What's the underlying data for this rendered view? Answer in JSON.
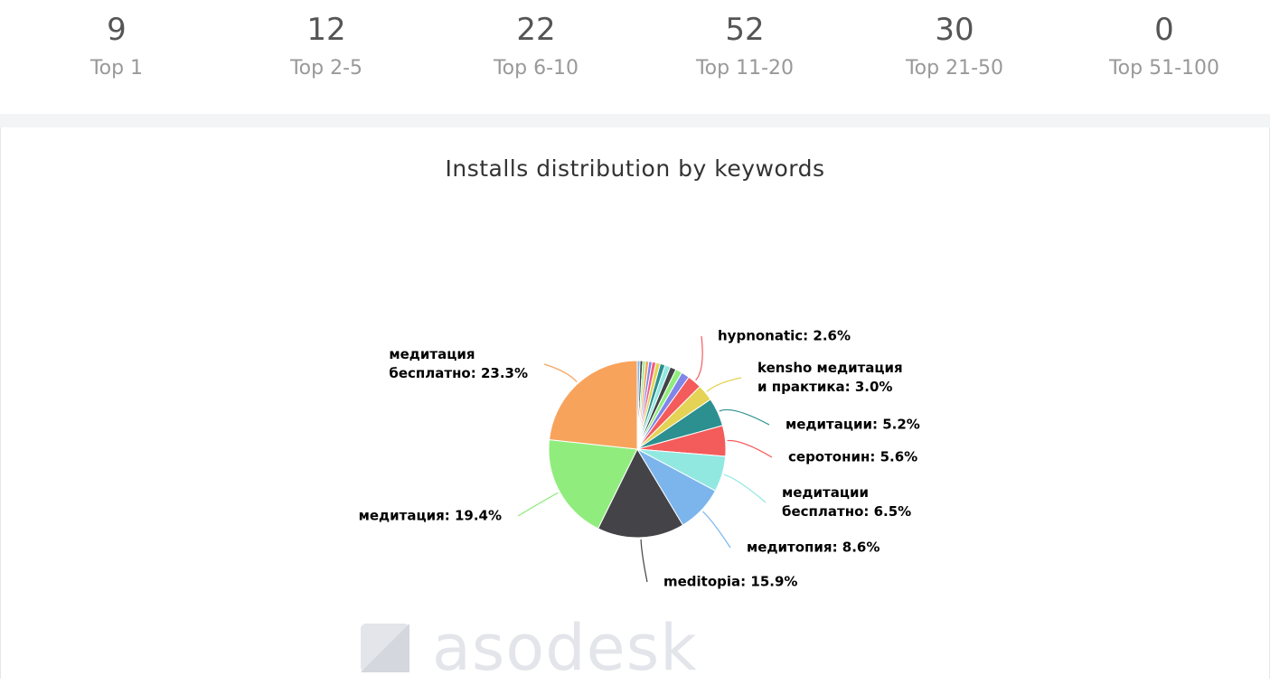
{
  "stats": [
    {
      "value": 9,
      "label": "Top 1"
    },
    {
      "value": 12,
      "label": "Top 2-5"
    },
    {
      "value": 22,
      "label": "Top 6-10"
    },
    {
      "value": 52,
      "label": "Top 11-20"
    },
    {
      "value": 30,
      "label": "Top 21-50"
    },
    {
      "value": 0,
      "label": "Top 51-100"
    }
  ],
  "chart_data": {
    "type": "pie",
    "title": "Installs distribution by keywords",
    "values": [
      0.5,
      0.5,
      0.5,
      0.6,
      0.6,
      0.7,
      0.8,
      0.9,
      1.0,
      1.1,
      1.2,
      1.5,
      2.6,
      3.0,
      5.2,
      5.6,
      6.5,
      8.6,
      15.9,
      19.4,
      23.3
    ],
    "value_labels": [
      null,
      null,
      null,
      null,
      null,
      null,
      null,
      null,
      null,
      null,
      null,
      null,
      "hypnonatic: 2.6%",
      "kensho медитация\nи практика: 3.0%",
      "медитации: 5.2%",
      "серотонин: 5.6%",
      "медитации\nбесплатно: 6.5%",
      "медитопия: 8.6%",
      "meditopia: 15.9%",
      "медитация: 19.4%",
      "медитация\nбесплатно: 23.3%"
    ],
    "colors": [
      "#7cb5ec",
      "#434348",
      "#90ed7d",
      "#f7a35c",
      "#8085e9",
      "#f15c80",
      "#e4d354",
      "#2b908f",
      "#91e8e1",
      "#434348",
      "#90ed7d",
      "#8085e9",
      "#f45b5b",
      "#e4d354",
      "#2b908f",
      "#f45b5b",
      "#91e8e1",
      "#7cb5ec",
      "#434348",
      "#90ed7d",
      "#f7a35c"
    ]
  },
  "watermark": "asodesk"
}
